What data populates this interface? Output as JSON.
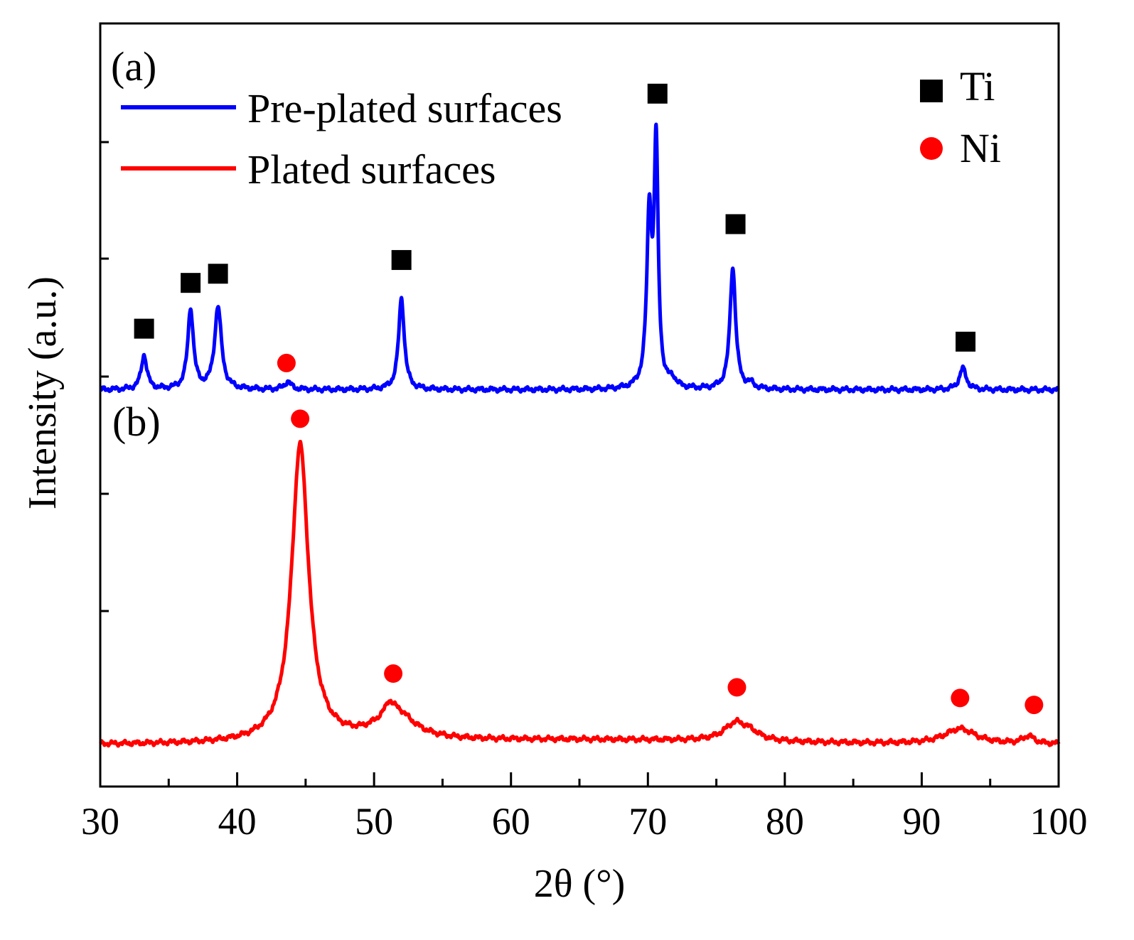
{
  "chart_data": {
    "type": "line",
    "title": "",
    "xlabel": "2θ (°)",
    "ylabel": "Intensity (a.u.)",
    "xlim": [
      30,
      100
    ],
    "ylim": [
      0,
      100
    ],
    "xticks": [
      30,
      40,
      50,
      60,
      70,
      80,
      90,
      100
    ],
    "xtick_labels": [
      "30",
      "40",
      "50",
      "60",
      "70",
      "80",
      "90",
      "100"
    ],
    "y_tick_labels_shown": false,
    "panel_labels": [
      "(a)",
      "(b)"
    ],
    "series": [
      {
        "name": "Pre-plated surfaces",
        "panel": "(a)",
        "color": "#0000ff",
        "baseline": 52.0,
        "peaks": [
          {
            "x": 33.2,
            "height": 4.5,
            "width": 0.25
          },
          {
            "x": 36.6,
            "height": 10.5,
            "width": 0.25
          },
          {
            "x": 38.6,
            "height": 10.8,
            "width": 0.3
          },
          {
            "x": 43.7,
            "height": 1.0,
            "width": 0.3
          },
          {
            "x": 52.0,
            "height": 12.0,
            "width": 0.25
          },
          {
            "x": 70.1,
            "height": 22.0,
            "width": 0.22
          },
          {
            "x": 70.6,
            "height": 31.0,
            "width": 0.18
          },
          {
            "x": 71.8,
            "height": 1.0,
            "width": 0.3
          },
          {
            "x": 76.2,
            "height": 16.0,
            "width": 0.25
          },
          {
            "x": 77.5,
            "height": 0.6,
            "width": 0.3
          },
          {
            "x": 93.0,
            "height": 2.8,
            "width": 0.3
          }
        ]
      },
      {
        "name": "Plated surfaces",
        "panel": "(b)",
        "color": "#ff0000",
        "baseline": 5.5,
        "peaks": [
          {
            "x": 44.6,
            "height": 39.0,
            "width": 0.75
          },
          {
            "x": 51.5,
            "height": 4.0,
            "width": 1.6
          },
          {
            "x": 51.1,
            "height": 1.2,
            "width": 0.3
          },
          {
            "x": 76.4,
            "height": 2.3,
            "width": 1.0
          },
          {
            "x": 77.5,
            "height": 0.8,
            "width": 0.8
          },
          {
            "x": 92.8,
            "height": 2.0,
            "width": 1.4
          },
          {
            "x": 97.8,
            "height": 1.0,
            "width": 0.5
          }
        ]
      }
    ],
    "markers": [
      {
        "phase": "Ti",
        "symbol": "square",
        "color": "#000000",
        "x": 33.2,
        "y": 60.0
      },
      {
        "phase": "Ti",
        "symbol": "square",
        "color": "#000000",
        "x": 36.6,
        "y": 66.0
      },
      {
        "phase": "Ti",
        "symbol": "square",
        "color": "#000000",
        "x": 38.6,
        "y": 67.2
      },
      {
        "phase": "Ni",
        "symbol": "circle",
        "color": "#ff0000",
        "x": 43.6,
        "y": 55.5
      },
      {
        "phase": "Ti",
        "symbol": "square",
        "color": "#000000",
        "x": 52.0,
        "y": 69.0
      },
      {
        "phase": "Ti",
        "symbol": "square",
        "color": "#000000",
        "x": 70.7,
        "y": 90.8
      },
      {
        "phase": "Ti",
        "symbol": "square",
        "color": "#000000",
        "x": 76.4,
        "y": 73.7
      },
      {
        "phase": "Ti",
        "symbol": "square",
        "color": "#000000",
        "x": 93.2,
        "y": 58.3
      },
      {
        "phase": "Ni",
        "symbol": "circle",
        "color": "#ff0000",
        "x": 44.6,
        "y": 48.2
      },
      {
        "phase": "Ni",
        "symbol": "circle",
        "color": "#ff0000",
        "x": 51.4,
        "y": 14.8
      },
      {
        "phase": "Ni",
        "symbol": "circle",
        "color": "#ff0000",
        "x": 76.5,
        "y": 13.0
      },
      {
        "phase": "Ni",
        "symbol": "circle",
        "color": "#ff0000",
        "x": 92.8,
        "y": 11.6
      },
      {
        "phase": "Ni",
        "symbol": "circle",
        "color": "#ff0000",
        "x": 98.2,
        "y": 10.7
      }
    ],
    "legend": {
      "location": "top-left",
      "entries": [
        {
          "label": "Pre-plated surfaces",
          "color": "#0000ff",
          "style": "line"
        },
        {
          "label": "Plated surfaces",
          "color": "#ff0000",
          "style": "line"
        }
      ]
    },
    "phase_legend": {
      "location": "top-right",
      "entries": [
        {
          "label": "Ti",
          "symbol": "square",
          "color": "#000000"
        },
        {
          "label": "Ni",
          "symbol": "circle",
          "color": "#ff0000"
        }
      ]
    }
  }
}
